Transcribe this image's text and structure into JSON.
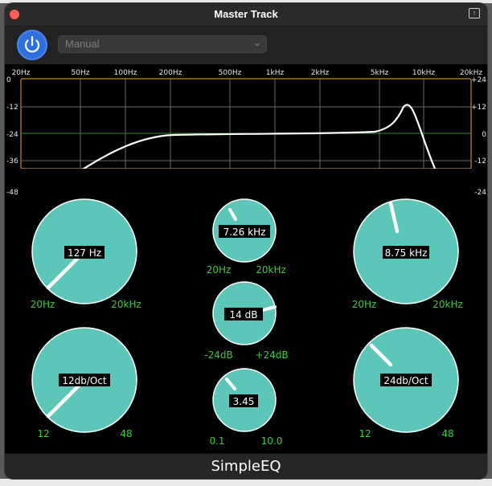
{
  "window": {
    "title": "Master Track"
  },
  "toolbar": {
    "preset_value": "Manual"
  },
  "freq_axis": [
    "20Hz",
    "50Hz",
    "100Hz",
    "200Hz",
    "500Hz",
    "1kHz",
    "2kHz",
    "5kHz",
    "10kHz",
    "20kHz"
  ],
  "db_axis_left": [
    "0",
    "-12",
    "-24",
    "-36",
    "-48"
  ],
  "db_axis_right": [
    "+24",
    "+12",
    "0",
    "-12",
    "-24"
  ],
  "knobs": {
    "lowcut_freq": {
      "value": "127 Hz",
      "min": "20Hz",
      "max": "20kHz"
    },
    "lowcut_slope": {
      "value": "12db/Oct",
      "min": "12",
      "max": "48"
    },
    "peak_freq": {
      "value": "7.26 kHz",
      "min": "20Hz",
      "max": "20kHz"
    },
    "peak_gain": {
      "value": "14 dB",
      "min": "-24dB",
      "max": "+24dB"
    },
    "peak_q": {
      "value": "3.45",
      "min": "0.1",
      "max": "10.0"
    },
    "highcut_freq": {
      "value": "8.75 kHz",
      "min": "20Hz",
      "max": "20kHz"
    },
    "highcut_slope": {
      "value": "24db/Oct",
      "min": "12",
      "max": "48"
    }
  },
  "colors": {
    "knob_fill": "#5cc7b8",
    "label_green": "#3fc93f",
    "axis_orange": "#c88a2e"
  },
  "footer": {
    "label": "SimpleEQ"
  }
}
